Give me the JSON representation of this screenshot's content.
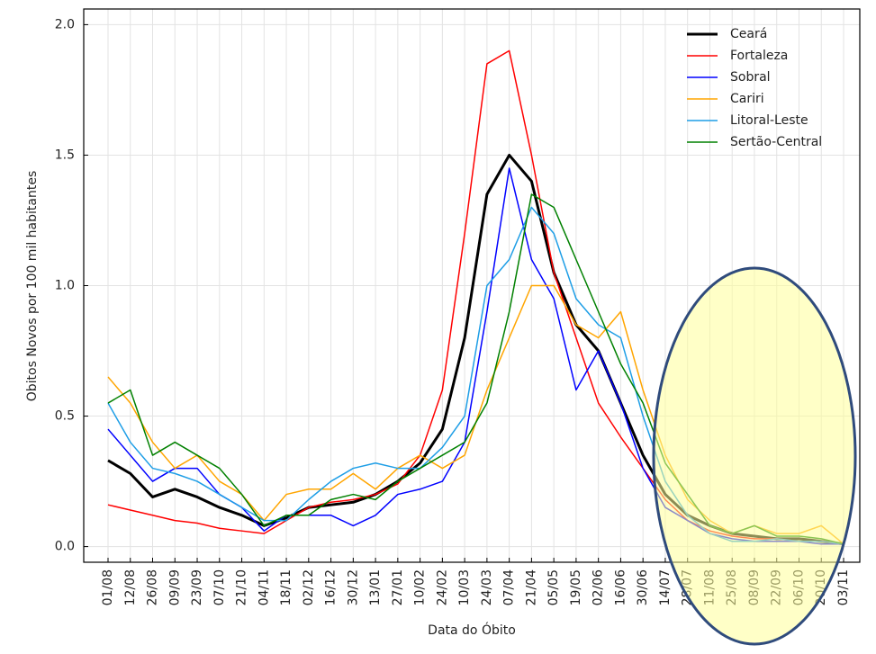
{
  "chart_data": {
    "type": "line",
    "ylabel": "Obitos Novos por 100 mil habitantes",
    "xlabel": "Data do Óbito",
    "categories": [
      "01/08",
      "12/08",
      "26/08",
      "09/09",
      "23/09",
      "07/10",
      "21/10",
      "04/11",
      "18/11",
      "02/12",
      "16/12",
      "30/12",
      "13/01",
      "27/01",
      "10/02",
      "24/02",
      "10/03",
      "24/03",
      "07/04",
      "21/04",
      "05/05",
      "19/05",
      "02/06",
      "16/06",
      "30/06",
      "14/07",
      "28/07",
      "11/08",
      "25/08",
      "08/09",
      "22/09",
      "06/10",
      "20/10",
      "03/11"
    ],
    "series": [
      {
        "name": "Ceará",
        "color": "#000000",
        "values": [
          0.33,
          0.28,
          0.19,
          0.22,
          0.19,
          0.15,
          0.12,
          0.08,
          0.11,
          0.15,
          0.16,
          0.17,
          0.2,
          0.25,
          0.32,
          0.45,
          0.8,
          1.35,
          1.5,
          1.4,
          1.05,
          0.85,
          0.75,
          0.55,
          0.35,
          0.2,
          0.12,
          0.08,
          0.05,
          0.04,
          0.03,
          0.03,
          0.02,
          0.01
        ]
      },
      {
        "name": "Fortaleza",
        "color": "#ff0000",
        "values": [
          0.16,
          0.14,
          0.12,
          0.1,
          0.09,
          0.07,
          0.06,
          0.05,
          0.1,
          0.15,
          0.17,
          0.18,
          0.2,
          0.24,
          0.35,
          0.6,
          1.2,
          1.85,
          1.9,
          1.5,
          1.05,
          0.8,
          0.55,
          0.42,
          0.3,
          0.18,
          0.1,
          0.06,
          0.04,
          0.03,
          0.03,
          0.02,
          0.02,
          0.01
        ]
      },
      {
        "name": "Sobral",
        "color": "#0000ff",
        "values": [
          0.45,
          0.35,
          0.25,
          0.3,
          0.3,
          0.2,
          0.15,
          0.06,
          0.12,
          0.12,
          0.12,
          0.08,
          0.12,
          0.2,
          0.22,
          0.25,
          0.4,
          0.9,
          1.45,
          1.1,
          0.95,
          0.6,
          0.75,
          0.55,
          0.3,
          0.15,
          0.1,
          0.05,
          0.03,
          0.02,
          0.02,
          0.02,
          0.01,
          0.01
        ]
      },
      {
        "name": "Cariri",
        "color": "#ffa500",
        "values": [
          0.65,
          0.55,
          0.4,
          0.3,
          0.35,
          0.25,
          0.2,
          0.1,
          0.2,
          0.22,
          0.22,
          0.28,
          0.22,
          0.3,
          0.35,
          0.3,
          0.35,
          0.6,
          0.8,
          1.0,
          1.0,
          0.85,
          0.8,
          0.9,
          0.6,
          0.35,
          0.18,
          0.1,
          0.05,
          0.08,
          0.05,
          0.05,
          0.08,
          0.01
        ]
      },
      {
        "name": "Litoral-Leste",
        "color": "#1e9ee6",
        "values": [
          0.55,
          0.4,
          0.3,
          0.28,
          0.25,
          0.2,
          0.15,
          0.1,
          0.1,
          0.18,
          0.25,
          0.3,
          0.32,
          0.3,
          0.3,
          0.38,
          0.5,
          1.0,
          1.1,
          1.3,
          1.2,
          0.95,
          0.85,
          0.8,
          0.5,
          0.25,
          0.12,
          0.05,
          0.02,
          0.02,
          0.03,
          0.02,
          0.02,
          0.01
        ]
      },
      {
        "name": "Sertão-Central",
        "color": "#008000",
        "values": [
          0.55,
          0.6,
          0.35,
          0.4,
          0.35,
          0.3,
          0.2,
          0.08,
          0.12,
          0.12,
          0.18,
          0.2,
          0.18,
          0.25,
          0.3,
          0.35,
          0.4,
          0.55,
          0.9,
          1.35,
          1.3,
          1.1,
          0.9,
          0.7,
          0.55,
          0.32,
          0.2,
          0.08,
          0.05,
          0.08,
          0.04,
          0.04,
          0.03,
          0.01
        ]
      }
    ],
    "ylim": [
      -0.06,
      2.06
    ],
    "yticks": [
      {
        "value": 0,
        "label": "0.0"
      },
      0.5,
      {
        "value": 1,
        "label": "1.0"
      },
      1.5,
      {
        "value": 2,
        "label": "2.0"
      }
    ],
    "grid": true,
    "legend": "upper right"
  }
}
